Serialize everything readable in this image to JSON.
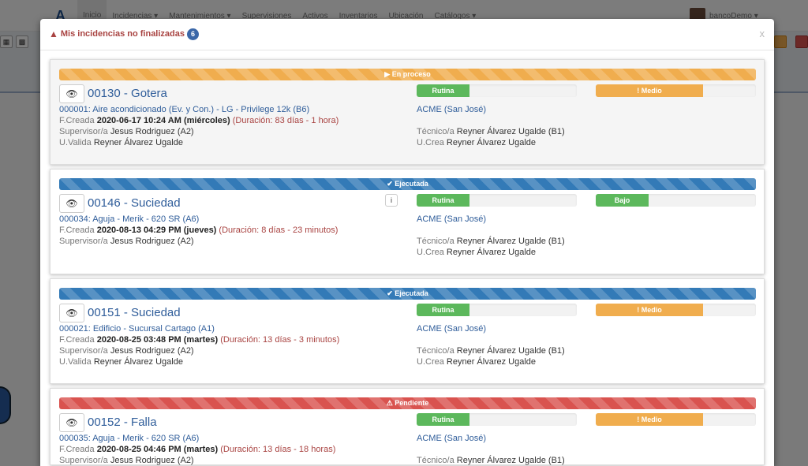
{
  "navbar": {
    "items": [
      "Inicio",
      "Incidencias ▾",
      "Mantenimientos ▾",
      "Supervisiones",
      "Activos",
      "Inventarios",
      "Ubicación",
      "Catálogos ▾"
    ],
    "user": "bancoDemo ▾"
  },
  "modal": {
    "title": "Mis incidencias no finalizadas",
    "count": "6",
    "close": "x"
  },
  "colors": {
    "en_proceso": "#f0ad4e",
    "ejecutada": "#337ab7",
    "pendiente": "#d9534f",
    "rutina": "#5cb85c",
    "medio": "#f0ad4e",
    "bajo": "#5cb85c"
  },
  "cards": [
    {
      "status": "▶ En proceso",
      "status_color": "#f0ad4e",
      "title": "00130 - Gotera",
      "asset": "000001: Aire acondicionado (Ev. y Con.) - LG - Privilege 12k (B6)",
      "created_label": "F.Creada",
      "created": "2020-06-17 10:24 AM (miércoles)",
      "duration": "(Duración: 83 días - 1 hora)",
      "supervisor_label": "Supervisor/a",
      "supervisor": "Jesus Rodriguez (A2)",
      "validator_label": "U.Valida",
      "validator": "Reyner Álvarez Ugalde",
      "type": "Rutina",
      "type_color": "#5cb85c",
      "type_pct": 33,
      "priority": "! Medio",
      "priority_color": "#f0ad4e",
      "priority_pct": 67,
      "location": "ACME (San José)",
      "tech_label": "Técnico/a",
      "tech": "Reyner Álvarez Ugalde (B1)",
      "creator_label": "U.Crea",
      "creator": "Reyner Álvarez Ugalde",
      "info": false
    },
    {
      "status": "✔ Ejecutada",
      "status_color": "#337ab7",
      "title": "00146 - Suciedad",
      "asset": "000034: Aguja - Merik - 620 SR (A6)",
      "created_label": "F.Creada",
      "created": "2020-08-13 04:29 PM (jueves)",
      "duration": "(Duración: 8 días - 23 minutos)",
      "supervisor_label": "Supervisor/a",
      "supervisor": "Jesus Rodriguez (A2)",
      "type": "Rutina",
      "type_color": "#5cb85c",
      "type_pct": 33,
      "priority": "Bajo",
      "priority_color": "#5cb85c",
      "priority_pct": 33,
      "location": "ACME (San José)",
      "tech_label": "Técnico/a",
      "tech": "Reyner Álvarez Ugalde (B1)",
      "creator_label": "U.Crea",
      "creator": "Reyner Álvarez Ugalde",
      "info": true
    },
    {
      "status": "✔ Ejecutada",
      "status_color": "#337ab7",
      "title": "00151 - Suciedad",
      "asset": "000021: Edificio - Sucursal Cartago (A1)",
      "created_label": "F.Creada",
      "created": "2020-08-25 03:48 PM (martes)",
      "duration": "(Duración: 13 días - 3 minutos)",
      "supervisor_label": "Supervisor/a",
      "supervisor": "Jesus Rodriguez (A2)",
      "validator_label": "U.Valida",
      "validator": "Reyner Álvarez Ugalde",
      "type": "Rutina",
      "type_color": "#5cb85c",
      "type_pct": 33,
      "priority": "! Medio",
      "priority_color": "#f0ad4e",
      "priority_pct": 67,
      "location": "ACME (San José)",
      "tech_label": "Técnico/a",
      "tech": "Reyner Álvarez Ugalde (B1)",
      "creator_label": "U.Crea",
      "creator": "Reyner Álvarez Ugalde",
      "info": false
    },
    {
      "status": "⚠ Pendiente",
      "status_color": "#d9534f",
      "title": "00152 - Falla",
      "asset": "000035: Aguja - Merik - 620 SR (A6)",
      "created_label": "F.Creada",
      "created": "2020-08-25 04:46 PM (martes)",
      "duration": "(Duración: 13 días - 18 horas)",
      "supervisor_label": "Supervisor/a",
      "supervisor": "Jesus Rodriguez (A2)",
      "type": "Rutina",
      "type_color": "#5cb85c",
      "type_pct": 33,
      "priority": "! Medio",
      "priority_color": "#f0ad4e",
      "priority_pct": 67,
      "location": "ACME (San José)",
      "tech_label": "Técnico/a",
      "tech": "Reyner Álvarez Ugalde (B1)",
      "info": false
    }
  ]
}
